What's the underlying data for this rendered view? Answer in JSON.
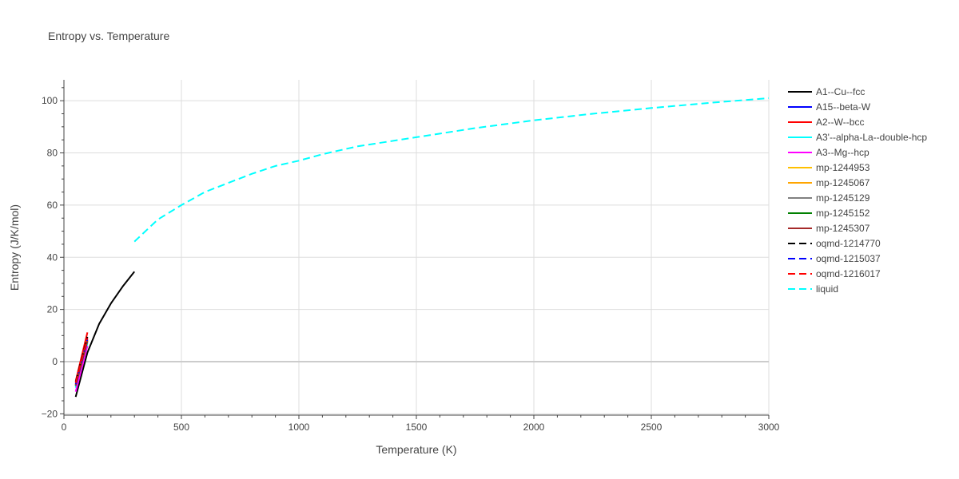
{
  "chart_data": {
    "type": "line",
    "title": "Entropy vs. Temperature",
    "xlabel": "Temperature (K)",
    "ylabel": "Entropy (J/K/mol)",
    "xlim": [
      0,
      3000
    ],
    "ylim": [
      -20.5,
      108
    ],
    "x_ticks": [
      0,
      500,
      1000,
      1500,
      2000,
      2500,
      3000
    ],
    "y_ticks": [
      -20,
      0,
      20,
      40,
      60,
      80,
      100
    ],
    "grid": true,
    "legend_position": "right",
    "series": [
      {
        "name": "A1--Cu--fcc",
        "color": "#000000",
        "dash": "solid",
        "x": [
          50,
          100,
          150,
          200,
          250,
          300
        ],
        "y": [
          -13.5,
          3.5,
          14.5,
          22.3,
          28.8,
          34.5
        ]
      },
      {
        "name": "A15--beta-W",
        "color": "#0000ff",
        "dash": "solid",
        "x": [
          50,
          100
        ],
        "y": [
          -9.5,
          7.5
        ]
      },
      {
        "name": "A2--W--bcc",
        "color": "#ff0000",
        "dash": "solid",
        "x": [
          50,
          100
        ],
        "y": [
          -7.5,
          11.2
        ]
      },
      {
        "name": "A3'--alpha-La--double-hcp",
        "color": "#00ffff",
        "dash": "solid",
        "x": [
          50,
          100
        ],
        "y": [
          -10.0,
          7.0
        ]
      },
      {
        "name": "A3--Mg--hcp",
        "color": "#ff00ff",
        "dash": "solid",
        "x": [
          50,
          100
        ],
        "y": [
          -11.5,
          6.0
        ]
      },
      {
        "name": "mp-1244953",
        "color": "#ffc000",
        "dash": "solid",
        "x": [
          50,
          100
        ],
        "y": [
          -9.0,
          8.0
        ]
      },
      {
        "name": "mp-1245067",
        "color": "#ffa500",
        "dash": "solid",
        "x": [
          50,
          100
        ],
        "y": [
          -8.8,
          8.3
        ]
      },
      {
        "name": "mp-1245129",
        "color": "#808080",
        "dash": "solid",
        "x": [
          50,
          100
        ],
        "y": [
          -9.3,
          7.8
        ]
      },
      {
        "name": "mp-1245152",
        "color": "#008000",
        "dash": "solid",
        "x": [
          50,
          100
        ],
        "y": [
          -9.1,
          8.1
        ]
      },
      {
        "name": "mp-1245307",
        "color": "#a52a2a",
        "dash": "solid",
        "x": [
          50,
          100
        ],
        "y": [
          -8.9,
          8.2
        ]
      },
      {
        "name": "oqmd-1214770",
        "color": "#000000",
        "dash": "dash",
        "x": [
          50,
          100
        ],
        "y": [
          -7.8,
          9.5
        ]
      },
      {
        "name": "oqmd-1215037",
        "color": "#0000ff",
        "dash": "dash",
        "x": [
          50,
          100
        ],
        "y": [
          -8.6,
          8.7
        ]
      },
      {
        "name": "oqmd-1216017",
        "color": "#ff0000",
        "dash": "dash",
        "x": [
          50,
          100
        ],
        "y": [
          -8.2,
          9.0
        ]
      },
      {
        "name": "liquid",
        "color": "#00ffff",
        "dash": "dash",
        "x": [
          300,
          400,
          500,
          600,
          700,
          800,
          900,
          1000,
          1100,
          1250,
          1500,
          1750,
          2000,
          2250,
          2500,
          2750,
          3000
        ],
        "y": [
          46.0,
          54.5,
          60.0,
          65.0,
          68.5,
          72.0,
          75.0,
          77.0,
          79.5,
          82.5,
          86.0,
          89.5,
          92.5,
          95.0,
          97.2,
          99.2,
          101.0
        ]
      }
    ]
  }
}
